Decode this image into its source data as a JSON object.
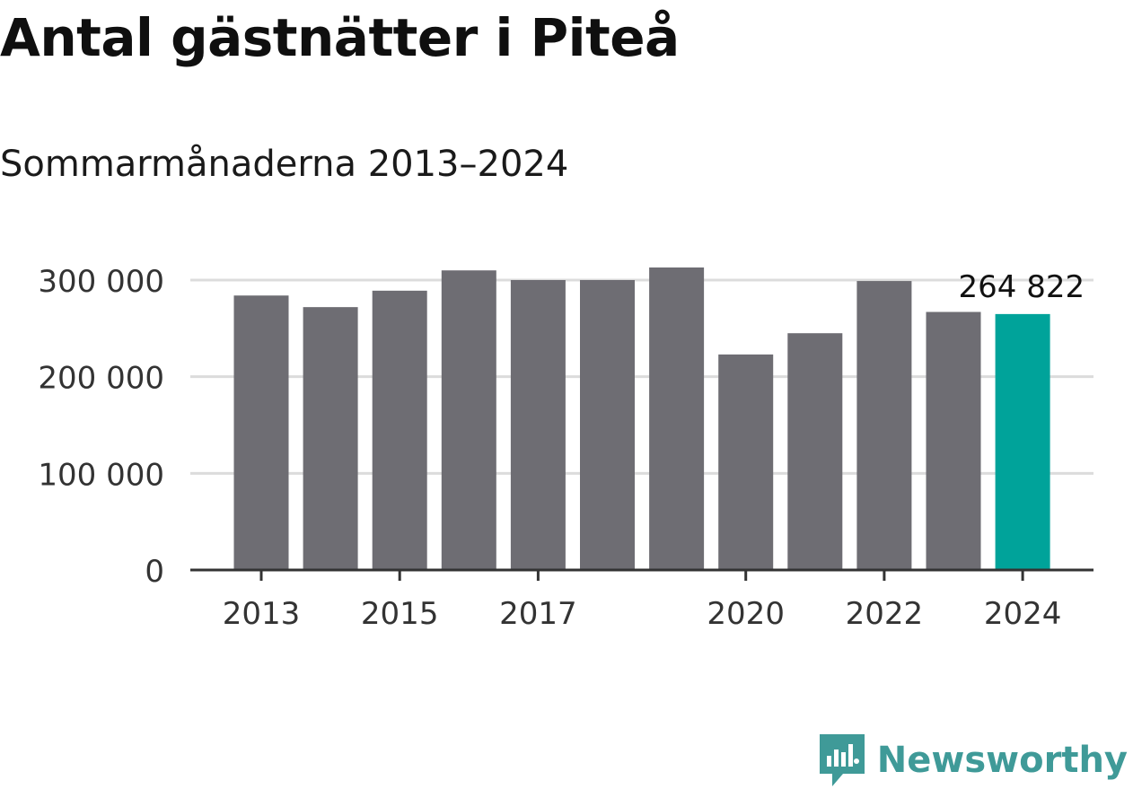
{
  "header": {
    "title": "Antal gästnätter i Piteå",
    "subtitle": "Sommarmånaderna 2013–2024"
  },
  "brand": {
    "name": "Newsworthy",
    "icon": "newsworthy-logo-icon",
    "color": "#3f9a98"
  },
  "colors": {
    "bar": "#6e6d73",
    "highlight": "#00a39a",
    "grid": "#dcdcdc",
    "axis": "#333333",
    "text": "#333333"
  },
  "chart_data": {
    "type": "bar",
    "categories": [
      "2013",
      "2014",
      "2015",
      "2016",
      "2017",
      "2018",
      "2019",
      "2020",
      "2021",
      "2022",
      "2023",
      "2024"
    ],
    "values": [
      284000,
      272000,
      289000,
      310000,
      300000,
      300000,
      313000,
      223000,
      245000,
      299000,
      267000,
      264822
    ],
    "highlight_index": 11,
    "data_labels": [
      {
        "index": 11,
        "text": "264 822"
      }
    ],
    "x_tick_labels": [
      "2013",
      "",
      "2015",
      "",
      "2017",
      "",
      "",
      "2020",
      "",
      "2022",
      "",
      "2024"
    ],
    "y_ticks": [
      0,
      100000,
      200000,
      300000
    ],
    "y_tick_labels": [
      "0",
      "100 000",
      "200 000",
      "300 000"
    ],
    "ylim": [
      0,
      300000
    ],
    "grid": true,
    "legend": "none"
  }
}
